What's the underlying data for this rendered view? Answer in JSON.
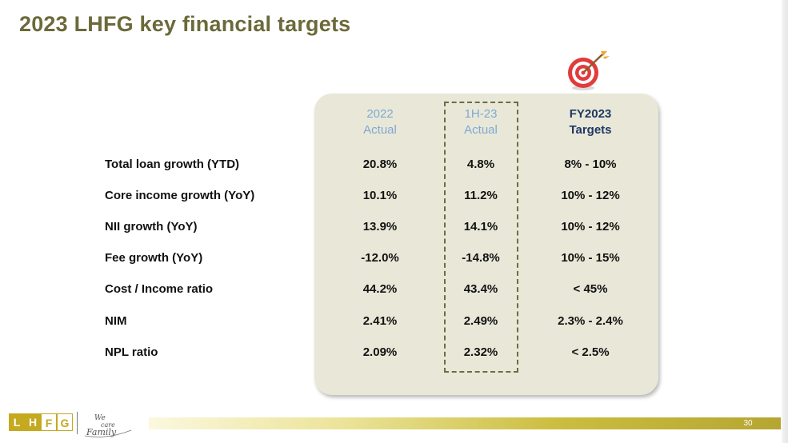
{
  "title": "2023 LHFG key financial targets",
  "columns": [
    {
      "line1": "2022",
      "line2": "Actual"
    },
    {
      "line1": "1H-23",
      "line2": "Actual"
    },
    {
      "line1": "FY2023",
      "line2": "Targets"
    }
  ],
  "rows": [
    {
      "label": "Total loan growth (YTD)",
      "v2022": "20.8%",
      "v1h23": "4.8%",
      "target": "8% - 10%"
    },
    {
      "label": "Core income growth (YoY)",
      "v2022": "10.1%",
      "v1h23": "11.2%",
      "target": "10% - 12%"
    },
    {
      "label": "NII growth (YoY)",
      "v2022": "13.9%",
      "v1h23": "14.1%",
      "target": "10% - 12%"
    },
    {
      "label": "Fee growth (YoY)",
      "v2022": "-12.0%",
      "v1h23": "-14.8%",
      "target": "10% - 15%"
    },
    {
      "label": "Cost / Income ratio",
      "v2022": "44.2%",
      "v1h23": "43.4%",
      "target": "< 45%"
    },
    {
      "label": "NIM",
      "v2022": "2.41%",
      "v1h23": "2.49%",
      "target": "2.3% - 2.4%"
    },
    {
      "label": "NPL ratio",
      "v2022": "2.09%",
      "v1h23": "2.32%",
      "target": "< 2.5%"
    }
  ],
  "logo": {
    "letters": [
      "L",
      "H",
      "F",
      "G"
    ],
    "slogan": "We care family"
  },
  "page_number": "30",
  "icons": {
    "target": "target-icon"
  },
  "colors": {
    "title": "#6b6a3a",
    "panel": "#e9e8d8",
    "actual_header": "#7fa8d2",
    "target_header": "#1f3864",
    "logo": "#c5a91f"
  }
}
